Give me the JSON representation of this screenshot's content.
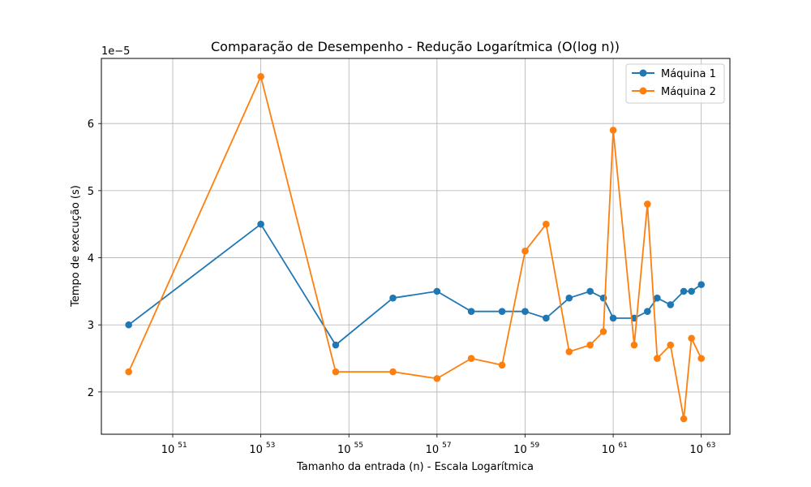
{
  "chart_data": {
    "type": "line",
    "title": "Comparação de Desempenho - Redução Logarítmica (O(log n))",
    "xlabel": "Tamanho da entrada (n) - Escala Logarítmica",
    "ylabel": "Tempo de execução (s)",
    "y_offset_label": "1e−5",
    "x_scale": "log",
    "x_tick_exponents": [
      51,
      53,
      55,
      57,
      59,
      61,
      63
    ],
    "x_tick_base": "10",
    "xlim_exponent": [
      49.38,
      63.65
    ],
    "ylim": [
      1.37,
      6.97
    ],
    "y_ticks": [
      2,
      3,
      4,
      5,
      6
    ],
    "y_ticks_text": [
      "2",
      "3",
      "4",
      "5",
      "6"
    ],
    "grid": true,
    "legend_position": "top-right",
    "x_exponents": [
      50,
      53,
      54.7,
      56,
      57,
      57.778,
      58.477,
      59,
      59.477,
      60,
      60.477,
      60.778,
      61,
      61.477,
      61.778,
      62,
      62.301,
      62.602,
      62.778,
      63
    ],
    "series": [
      {
        "name": "Máquina 1",
        "color": "#1f77b4",
        "values": [
          3.0,
          4.5,
          2.7,
          3.4,
          3.5,
          3.2,
          3.2,
          3.2,
          3.1,
          3.4,
          3.5,
          3.4,
          3.1,
          3.1,
          3.2,
          3.4,
          3.3,
          3.5,
          3.5,
          3.6
        ]
      },
      {
        "name": "Máquina 2",
        "color": "#ff7f0e",
        "values": [
          2.3,
          6.7,
          2.3,
          2.3,
          2.2,
          2.5,
          2.4,
          4.1,
          4.5,
          2.6,
          2.7,
          2.9,
          5.9,
          2.7,
          4.8,
          2.5,
          2.7,
          1.6,
          2.8,
          2.5
        ]
      }
    ]
  }
}
